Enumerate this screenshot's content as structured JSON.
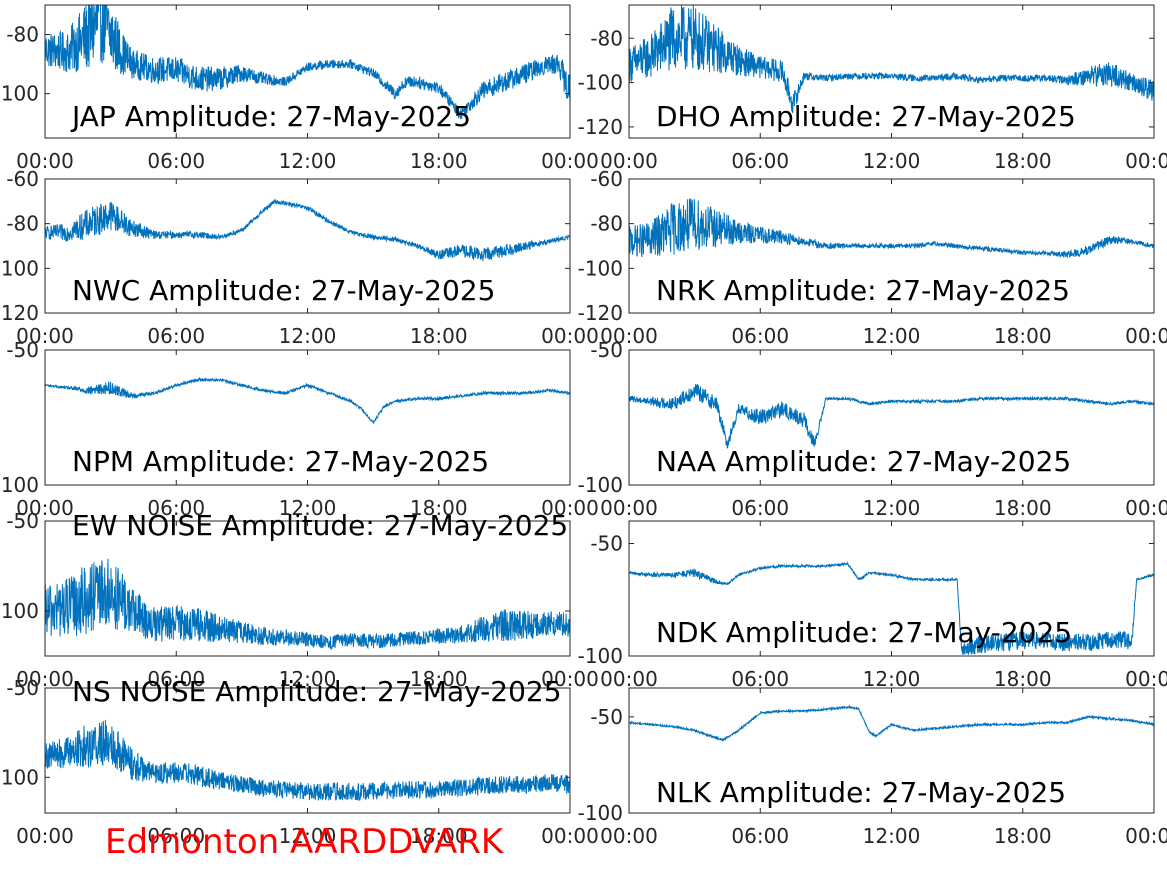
{
  "figure": {
    "footer": "Edmonton AARDDVARK",
    "footer_color": "#ff0000",
    "series_color": "#0072bd",
    "axis_color": "#262626"
  },
  "chart_data": [
    {
      "type": "line",
      "station": "JAP",
      "title": "JAP Amplitude: 27-May-2025",
      "xlim": [
        "00:00",
        "00:00"
      ],
      "x_ticks": [
        "00:00",
        "06:00",
        "12:00",
        "18:00",
        "00:00"
      ],
      "ylim": [
        -115,
        -70
      ],
      "y_ticks": [
        -80,
        -100
      ],
      "y_tick_labels": [
        "-80",
        "-100"
      ],
      "line_hours": [
        0,
        1,
        2,
        2.5,
        3,
        3.5,
        4,
        5,
        6,
        7,
        8,
        9,
        10,
        11,
        12,
        13,
        14,
        15,
        16,
        16.5,
        17,
        18,
        19,
        20,
        21,
        22,
        23,
        23.5,
        24
      ],
      "line_values": [
        -85,
        -86,
        -80,
        -75,
        -80,
        -86,
        -90,
        -92,
        -92,
        -95,
        -95,
        -93,
        -95,
        -96,
        -91,
        -90,
        -90,
        -93,
        -100,
        -96,
        -96,
        -98,
        -107,
        -99,
        -96,
        -93,
        -90,
        -90,
        -100
      ],
      "noise": [
        12,
        14,
        25,
        28,
        25,
        15,
        10,
        9,
        9,
        9,
        8,
        6,
        4,
        3,
        3,
        3,
        3,
        3,
        4,
        4,
        4,
        4,
        4,
        6,
        7,
        7,
        6,
        8,
        12
      ]
    },
    {
      "type": "line",
      "station": "DHO",
      "title": "DHO Amplitude: 27-May-2025",
      "xlim": [
        "00:00",
        "00:00"
      ],
      "x_ticks": [
        "00:00",
        "06:00",
        "12:00",
        "18:00",
        "00:00"
      ],
      "ylim": [
        -125,
        -65
      ],
      "y_ticks": [
        -80,
        -100,
        -120
      ],
      "y_tick_labels": [
        "-80",
        "-100",
        "-120"
      ],
      "line_hours": [
        0,
        1,
        2,
        3,
        4,
        5,
        6,
        7,
        7.5,
        8,
        9,
        10,
        11,
        12,
        13,
        14,
        15,
        16,
        17,
        18,
        19,
        20,
        21,
        22,
        23,
        24
      ],
      "line_values": [
        -92,
        -88,
        -80,
        -80,
        -85,
        -90,
        -93,
        -95,
        -110,
        -97,
        -98,
        -97,
        -97,
        -97,
        -98,
        -98,
        -97,
        -99,
        -98,
        -98,
        -98,
        -99,
        -97,
        -96,
        -100,
        -104
      ],
      "noise": [
        16,
        20,
        30,
        30,
        22,
        14,
        10,
        10,
        10,
        4,
        3,
        3,
        3,
        3,
        3,
        3,
        3,
        3,
        3,
        3,
        3,
        4,
        9,
        12,
        8,
        10
      ]
    },
    {
      "type": "line",
      "station": "NWC",
      "title": "NWC Amplitude: 27-May-2025",
      "xlim": [
        "00:00",
        "00:00"
      ],
      "x_ticks": [
        "00:00",
        "06:00",
        "12:00",
        "18:00",
        "00:00"
      ],
      "ylim": [
        -120,
        -60
      ],
      "y_ticks": [
        -60,
        -80,
        -100,
        -120
      ],
      "y_tick_labels": [
        "-60",
        "-80",
        "-100",
        "-120"
      ],
      "line_hours": [
        0,
        1,
        2,
        3,
        4,
        5,
        6,
        7,
        8,
        9,
        10,
        10.5,
        11,
        12,
        13,
        14,
        15,
        16,
        17,
        18,
        19,
        20,
        21,
        22,
        23,
        24
      ],
      "line_values": [
        -84,
        -84,
        -80,
        -76,
        -82,
        -85,
        -85,
        -85,
        -86,
        -83,
        -74,
        -70,
        -71,
        -73,
        -79,
        -84,
        -86,
        -87,
        -90,
        -94,
        -92,
        -94,
        -92,
        -90,
        -88,
        -86
      ],
      "noise": [
        6,
        8,
        14,
        14,
        8,
        4,
        3,
        3,
        2,
        2,
        2,
        2,
        2,
        2,
        2,
        2,
        2,
        2,
        2,
        4,
        6,
        6,
        6,
        4,
        2,
        2
      ]
    },
    {
      "type": "line",
      "station": "NRK",
      "title": "NRK Amplitude: 27-May-2025",
      "xlim": [
        "00:00",
        "00:00"
      ],
      "x_ticks": [
        "00:00",
        "06:00",
        "12:00",
        "18:00",
        "00:00"
      ],
      "ylim": [
        -120,
        -60
      ],
      "y_ticks": [
        -60,
        -80,
        -100,
        -120
      ],
      "y_tick_labels": [
        "-60",
        "-80",
        "-100",
        "-120"
      ],
      "line_hours": [
        0,
        1,
        2,
        3,
        4,
        5,
        6,
        7,
        8,
        9,
        10,
        11,
        12,
        13,
        14,
        15,
        16,
        17,
        18,
        19,
        20,
        21,
        22,
        23,
        24
      ],
      "line_values": [
        -88,
        -87,
        -82,
        -80,
        -82,
        -84,
        -85,
        -86,
        -88,
        -90,
        -90,
        -90,
        -90,
        -90,
        -89,
        -90,
        -91,
        -92,
        -93,
        -93,
        -94,
        -92,
        -87,
        -88,
        -90
      ],
      "noise": [
        14,
        16,
        24,
        24,
        18,
        10,
        8,
        6,
        4,
        3,
        2,
        2,
        2,
        2,
        2,
        2,
        2,
        2,
        2,
        2,
        3,
        4,
        4,
        2,
        2
      ]
    },
    {
      "type": "line",
      "station": "NPM",
      "title": "NPM Amplitude: 27-May-2025",
      "xlim": [
        "00:00",
        "00:00"
      ],
      "x_ticks": [
        "00:00",
        "06:00",
        "12:00",
        "18:00",
        "00:00"
      ],
      "ylim": [
        -100,
        -50
      ],
      "y_ticks": [
        -50,
        -100
      ],
      "y_tick_labels": [
        "-50",
        "-100"
      ],
      "line_hours": [
        0,
        1,
        2,
        3,
        4,
        5,
        6,
        7,
        8,
        9,
        10,
        11,
        12,
        13,
        14,
        14.5,
        15,
        15.5,
        16,
        17,
        18,
        19,
        20,
        21,
        22,
        23,
        24
      ],
      "line_values": [
        -63,
        -64,
        -65,
        -64,
        -67,
        -66,
        -63,
        -61,
        -61,
        -63,
        -65,
        -66,
        -63,
        -66,
        -69,
        -72,
        -77,
        -71,
        -69,
        -68,
        -68,
        -67,
        -66,
        -66,
        -66,
        -65,
        -66
      ],
      "noise": [
        1,
        1,
        3,
        5,
        2,
        1,
        1,
        1,
        1,
        1,
        1,
        1,
        1,
        1,
        1,
        1,
        1,
        1,
        1,
        1,
        1,
        1,
        1,
        1,
        1,
        1,
        1
      ]
    },
    {
      "type": "line",
      "station": "NAA",
      "title": "NAA Amplitude: 27-May-2025",
      "xlim": [
        "00:00",
        "00:00"
      ],
      "x_ticks": [
        "00:00",
        "06:00",
        "12:00",
        "18:00",
        "00:00"
      ],
      "ylim": [
        -100,
        -50
      ],
      "y_ticks": [
        -50,
        -100
      ],
      "y_tick_labels": [
        "-50",
        "-100"
      ],
      "line_hours": [
        0,
        1,
        2,
        3,
        4,
        4.5,
        5,
        6,
        7,
        8,
        8.5,
        9,
        10,
        11,
        12,
        13,
        14,
        15,
        16,
        17,
        18,
        19,
        20,
        21,
        22,
        23,
        24
      ],
      "line_values": [
        -68,
        -69,
        -70,
        -65,
        -70,
        -85,
        -72,
        -75,
        -72,
        -76,
        -85,
        -68,
        -68,
        -70,
        -69,
        -69,
        -69,
        -69,
        -68,
        -68,
        -68,
        -68,
        -68,
        -69,
        -70,
        -69,
        -70
      ],
      "noise": [
        2,
        3,
        5,
        6,
        6,
        4,
        4,
        6,
        6,
        6,
        4,
        1,
        1,
        1,
        1,
        1,
        1,
        1,
        1,
        1,
        1,
        1,
        1,
        1,
        1,
        1,
        1
      ]
    },
    {
      "type": "line",
      "station": "EW NOISE",
      "title": "EW NOISE Amplitude: 27-May-2025",
      "xlim": [
        "00:00",
        "00:00"
      ],
      "x_ticks": [
        "00:00",
        "06:00",
        "12:00",
        "18:00",
        "00:00"
      ],
      "ylim": [
        -125,
        -50
      ],
      "y_ticks": [
        -50,
        -100
      ],
      "y_tick_labels": [
        "-50",
        "-100"
      ],
      "line_hours": [
        0,
        1,
        2,
        3,
        4,
        5,
        6,
        7,
        8,
        9,
        10,
        11,
        12,
        13,
        14,
        15,
        16,
        17,
        18,
        19,
        20,
        21,
        22,
        23,
        24
      ],
      "line_values": [
        -100,
        -98,
        -93,
        -90,
        -100,
        -108,
        -106,
        -108,
        -110,
        -112,
        -114,
        -115,
        -116,
        -117,
        -116,
        -117,
        -116,
        -115,
        -114,
        -113,
        -110,
        -108,
        -108,
        -107,
        -108
      ],
      "noise": [
        30,
        34,
        40,
        40,
        28,
        20,
        20,
        20,
        16,
        12,
        10,
        9,
        8,
        8,
        8,
        8,
        8,
        8,
        9,
        10,
        14,
        18,
        16,
        14,
        14
      ]
    },
    {
      "type": "line",
      "station": "NDK",
      "title": "NDK Amplitude: 27-May-2025",
      "xlim": [
        "00:00",
        "00:00"
      ],
      "x_ticks": [
        "00:00",
        "06:00",
        "12:00",
        "18:00",
        "00:00"
      ],
      "ylim": [
        -100,
        -40
      ],
      "y_ticks": [
        -50,
        -100
      ],
      "y_tick_labels": [
        "-50",
        "-100"
      ],
      "line_hours": [
        0,
        1,
        2,
        3,
        4,
        4.5,
        5,
        6,
        7,
        8,
        9,
        10,
        10.5,
        11,
        12,
        13,
        14,
        15,
        15.2,
        16,
        17,
        18,
        19,
        20,
        21,
        22,
        23,
        23.2,
        24
      ],
      "line_values": [
        -63,
        -64,
        -64,
        -63,
        -67,
        -68,
        -64,
        -61,
        -60,
        -60,
        -60,
        -59,
        -66,
        -63,
        -64,
        -66,
        -66,
        -66,
        -97,
        -95,
        -94,
        -93,
        -93,
        -94,
        -94,
        -93,
        -93,
        -66,
        -64
      ],
      "noise": [
        1,
        2,
        2,
        4,
        2,
        1,
        1,
        1,
        1,
        1,
        1,
        1,
        1,
        1,
        1,
        1,
        1,
        1,
        6,
        8,
        8,
        8,
        8,
        8,
        8,
        8,
        8,
        1,
        1
      ]
    },
    {
      "type": "line",
      "station": "NS NOISE",
      "title": "NS NOISE Amplitude: 27-May-2025",
      "xlim": [
        "00:00",
        "00:00"
      ],
      "x_ticks": [
        "00:00",
        "06:00",
        "12:00",
        "18:00",
        "00:00"
      ],
      "ylim": [
        -120,
        -50
      ],
      "y_ticks": [
        -50,
        -100
      ],
      "y_tick_labels": [
        "-50",
        "-100"
      ],
      "line_hours": [
        0,
        1,
        2,
        3,
        4,
        5,
        6,
        7,
        8,
        9,
        10,
        11,
        12,
        13,
        14,
        15,
        16,
        17,
        18,
        19,
        20,
        21,
        22,
        23,
        24
      ],
      "line_values": [
        -88,
        -86,
        -82,
        -80,
        -93,
        -98,
        -97,
        -99,
        -102,
        -104,
        -106,
        -107,
        -108,
        -108,
        -108,
        -108,
        -107,
        -107,
        -107,
        -106,
        -105,
        -104,
        -104,
        -103,
        -104
      ],
      "noise": [
        14,
        18,
        26,
        26,
        18,
        12,
        12,
        12,
        10,
        10,
        10,
        10,
        10,
        10,
        10,
        10,
        10,
        10,
        10,
        10,
        10,
        10,
        10,
        10,
        10
      ]
    },
    {
      "type": "line",
      "station": "NLK",
      "title": "NLK Amplitude: 27-May-2025",
      "xlim": [
        "00:00",
        "00:00"
      ],
      "x_ticks": [
        "00:00",
        "06:00",
        "12:00",
        "18:00",
        "00:00"
      ],
      "ylim": [
        -100,
        -35
      ],
      "y_ticks": [
        -50,
        -100
      ],
      "y_tick_labels": [
        "-50",
        "-100"
      ],
      "line_hours": [
        0,
        1,
        2,
        3,
        4,
        4.3,
        5,
        6,
        7,
        8,
        9,
        10,
        10.5,
        11,
        11.3,
        12,
        13,
        14,
        15,
        16,
        17,
        18,
        19,
        20,
        21,
        22,
        23,
        24
      ],
      "line_values": [
        -53,
        -54,
        -55,
        -57,
        -61,
        -62,
        -57,
        -48,
        -47,
        -47,
        -46,
        -45,
        -46,
        -58,
        -60,
        -54,
        -57,
        -56,
        -55,
        -54,
        -54,
        -54,
        -53,
        -53,
        -50,
        -51,
        -52,
        -54
      ],
      "noise": [
        1,
        1,
        1,
        1,
        1,
        1,
        1,
        1,
        1,
        1,
        1,
        1,
        1,
        1,
        1,
        1,
        1,
        1,
        1,
        1,
        1,
        1,
        1,
        1,
        1,
        1,
        1,
        1
      ]
    }
  ]
}
